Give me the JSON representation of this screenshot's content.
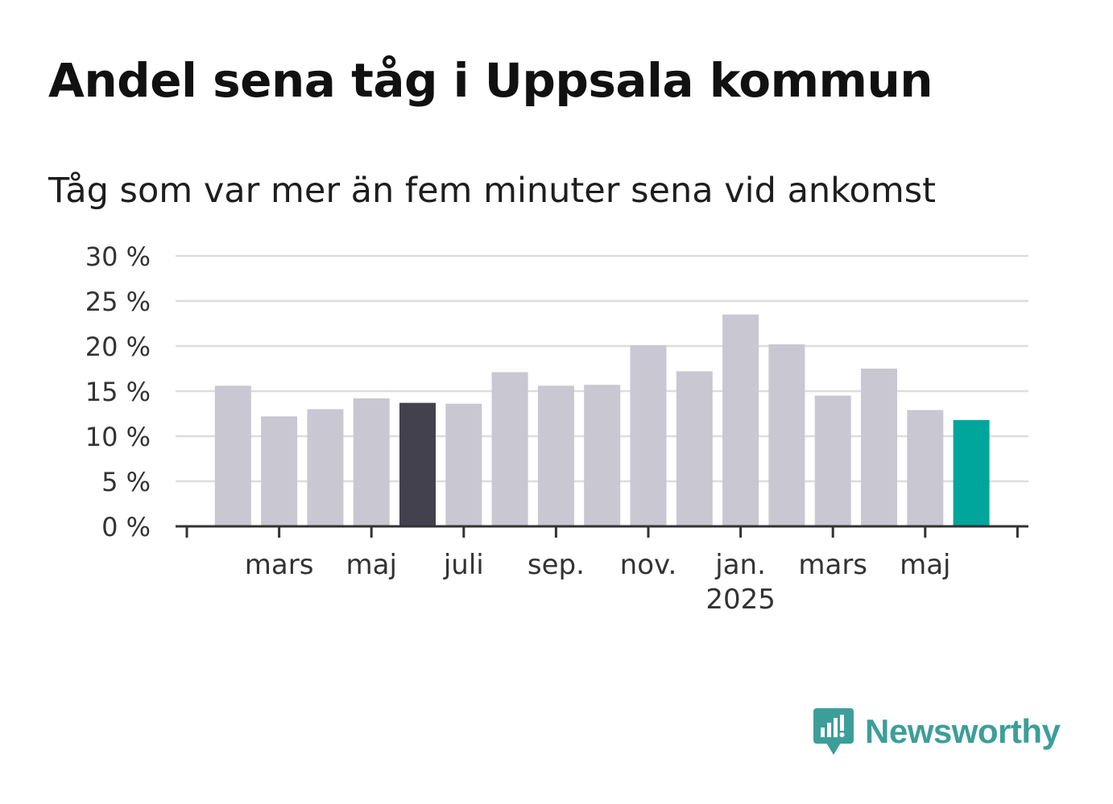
{
  "title": "Andel sena tåg i Uppsala kommun",
  "subtitle": "Tåg som var mer än fem minuter sena vid ankomst",
  "brand": {
    "name": "Newsworthy",
    "icon": "newsworthy-logo-icon"
  },
  "colors": {
    "default_bar": "#c8c7d2",
    "highlight_bar": "#43414e",
    "latest_bar": "#00a59b",
    "grid": "#dddddd",
    "axis": "#333333"
  },
  "chart_data": {
    "type": "bar",
    "title": "Andel sena tåg i Uppsala kommun",
    "subtitle": "Tåg som var mer än fem minuter sena vid ankomst",
    "xlabel": "",
    "ylabel": "",
    "ylim": [
      0,
      30
    ],
    "yticks": [
      0,
      5,
      10,
      15,
      20,
      25,
      30
    ],
    "ytick_labels": [
      "0 %",
      "5 %",
      "10 %",
      "15 %",
      "20 %",
      "25 %",
      "30 %"
    ],
    "grid": true,
    "categories": [
      "2024-02",
      "2024-03",
      "2024-04",
      "2024-05",
      "2024-06",
      "2024-07",
      "2024-08",
      "2024-09",
      "2024-10",
      "2024-11",
      "2024-12",
      "2025-01",
      "2025-02",
      "2025-03",
      "2025-04",
      "2025-05",
      "2025-06"
    ],
    "values": [
      15.6,
      12.2,
      13.0,
      14.2,
      13.7,
      13.6,
      17.1,
      15.6,
      15.7,
      20.1,
      17.2,
      23.5,
      20.2,
      14.5,
      17.5,
      12.9,
      11.8
    ],
    "highlight": {
      "2024-06": "highlight_bar",
      "2025-06": "latest_bar"
    },
    "xtick_labels": [
      {
        "category": "2024-03",
        "label": "mars"
      },
      {
        "category": "2024-05",
        "label": "maj"
      },
      {
        "category": "2024-07",
        "label": "juli"
      },
      {
        "category": "2024-09",
        "label": "sep."
      },
      {
        "category": "2024-11",
        "label": "nov."
      },
      {
        "category": "2025-01",
        "label": "jan.",
        "sublabel": "2025"
      },
      {
        "category": "2025-03",
        "label": "mars"
      },
      {
        "category": "2025-05",
        "label": "maj"
      }
    ]
  }
}
